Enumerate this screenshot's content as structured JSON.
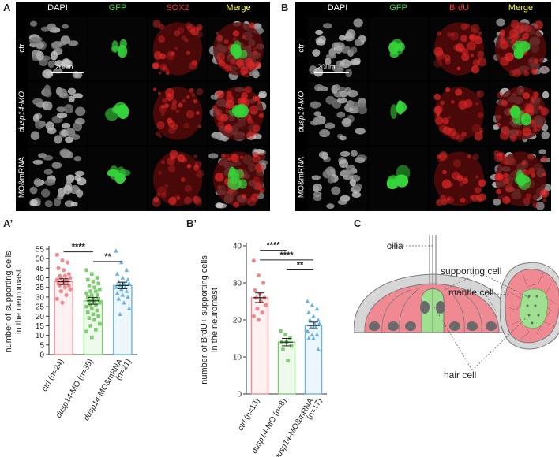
{
  "panels": {
    "A": "A",
    "B": "B",
    "A2": "A’",
    "B2": "B’",
    "C": "C"
  },
  "micrographs": {
    "A": {
      "columns": [
        {
          "label": "DAPI",
          "color": "#ffffff"
        },
        {
          "label": "GFP",
          "color": "#3ddc3d"
        },
        {
          "label": "SOX2",
          "color": "#ff3030"
        },
        {
          "label": "Merge",
          "color": "#ffff33"
        }
      ],
      "rows": [
        "ctrl",
        "dusp14-MO",
        "MO&mRNA"
      ],
      "scale_bar": "20um"
    },
    "B": {
      "columns": [
        {
          "label": "DAPI",
          "color": "#ffffff"
        },
        {
          "label": "GFP",
          "color": "#3ddc3d"
        },
        {
          "label": "BrdU",
          "color": "#ff3030"
        },
        {
          "label": "Merge",
          "color": "#ffff33"
        }
      ],
      "rows": [
        "ctrl",
        "dusp14-MO",
        "MO&mRNA"
      ],
      "scale_bar": "20um"
    }
  },
  "chart_data": [
    {
      "type": "bar",
      "ylabel": "number of supporting cells in the neuromast",
      "ylabel_lines": [
        "number of supporting cells",
        "in the neuromast"
      ],
      "ylim": [
        0,
        55
      ],
      "yticks": [
        0,
        5,
        10,
        15,
        20,
        25,
        30,
        35,
        40,
        45,
        50,
        55
      ],
      "categories": [
        "ctrl (n=24)",
        "dusp14-MO (n=35)",
        "dusp14-MO&mRNA (n=21)"
      ],
      "category_lines": [
        [
          "ctrl (n=24)"
        ],
        [
          "dusp14-MO (n=35)"
        ],
        [
          "dusp14-MO&mRNA",
          "(n=21)"
        ]
      ],
      "values": [
        38,
        28,
        36
      ],
      "errors": [
        1.5,
        1.8,
        1.7
      ],
      "colors": [
        "#f08a8f",
        "#7ccd6e",
        "#6bb3e0"
      ],
      "markers": [
        "circle",
        "square",
        "triangle"
      ],
      "points": [
        [
          52,
          49,
          48,
          45,
          44,
          42,
          41,
          41,
          40,
          40,
          39,
          39,
          38,
          38,
          37,
          37,
          36,
          36,
          35,
          34,
          33,
          31,
          29,
          27
        ],
        [
          44,
          42,
          40,
          39,
          38,
          37,
          36,
          35,
          34,
          33,
          33,
          32,
          31,
          31,
          30,
          29,
          29,
          28,
          28,
          27,
          26,
          26,
          25,
          24,
          23,
          22,
          21,
          20,
          19,
          18,
          16,
          15,
          13,
          12,
          9
        ],
        [
          54,
          48,
          44,
          42,
          40,
          39,
          38,
          37,
          37,
          36,
          35,
          35,
          34,
          33,
          32,
          31,
          30,
          29,
          27,
          24,
          21
        ]
      ],
      "significance": [
        {
          "from": 0,
          "to": 1,
          "label": "****",
          "y": 53.5
        },
        {
          "from": 1,
          "to": 2,
          "label": "**",
          "y": 48.5
        }
      ]
    },
    {
      "type": "bar",
      "ylabel": "number of BrdU+ supporting cells in the neuromast",
      "ylabel_lines": [
        "number of BrdU+ supporting cells",
        "in the neuromast"
      ],
      "ylim": [
        0,
        40
      ],
      "yticks": [
        0,
        10,
        20,
        30,
        40
      ],
      "categories": [
        "ctrl (n=13)",
        "dusp14-MO (n=8)",
        "dusp14-MO&mRNA (n=17)"
      ],
      "category_lines": [
        [
          "ctrl (n=13)"
        ],
        [
          "dusp14-MO (n=8)"
        ],
        [
          "dusp14-MO&mRNA",
          "(n=17)"
        ]
      ],
      "values": [
        26,
        14,
        18.5
      ],
      "errors": [
        1.3,
        1.0,
        0.9
      ],
      "colors": [
        "#f08a8f",
        "#7ccd6e",
        "#6bb3e0"
      ],
      "markers": [
        "circle",
        "square",
        "triangle"
      ],
      "points": [
        [
          36,
          32,
          30,
          28,
          27,
          26,
          26,
          25,
          24,
          23,
          22,
          21,
          20
        ],
        [
          17,
          16,
          15,
          14,
          14,
          13,
          12,
          9
        ],
        [
          25,
          24,
          23,
          22,
          21,
          20,
          20,
          19,
          19,
          18,
          18,
          17,
          16,
          16,
          15,
          15,
          12
        ]
      ],
      "significance": [
        {
          "from": 0,
          "to": 1,
          "label": "****",
          "y": 38.8
        },
        {
          "from": 0,
          "to": 2,
          "label": "****",
          "y": 36.2
        },
        {
          "from": 1,
          "to": 2,
          "label": "**",
          "y": 33.5
        }
      ]
    }
  ],
  "diagram": {
    "labels": {
      "cilia": "cilia",
      "supporting": "supporting cell",
      "mantle": "mantle cell",
      "hair": "hair cell"
    },
    "colors": {
      "mantle": "#d6d6d6",
      "support": "#ef8a92",
      "hair": "#9ee08f",
      "nucleus": "#6a6a6a"
    }
  }
}
